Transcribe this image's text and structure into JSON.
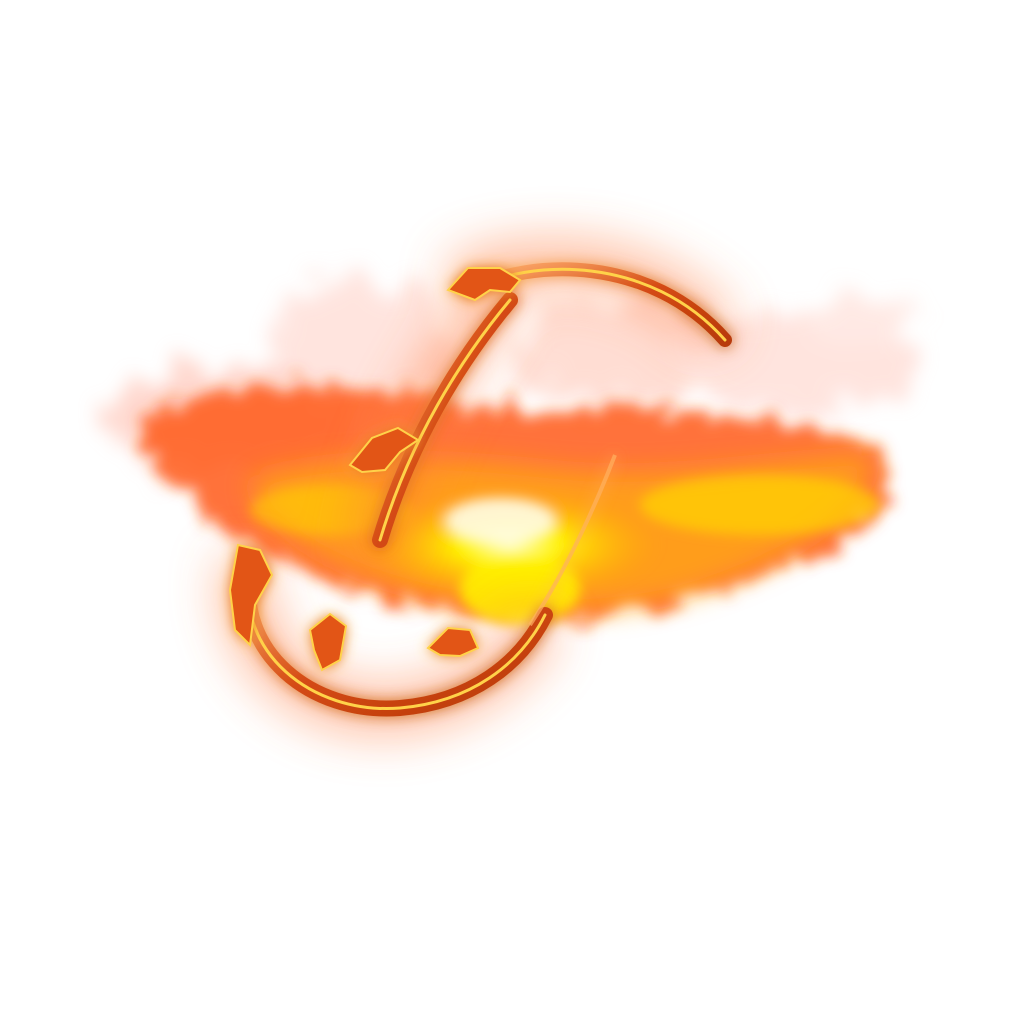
{
  "image": {
    "subject": "fire-dragon-artwork",
    "colors": {
      "background": "#ffffff",
      "flame_core": "#fff200",
      "flame_mid": "#ffb000",
      "flame_outer": "#ff5a14",
      "smoke": "#ffcfc4",
      "dragon_body": "#d44a12",
      "dragon_highlight": "#ffd24a",
      "glow": "#ff7a3c"
    }
  }
}
